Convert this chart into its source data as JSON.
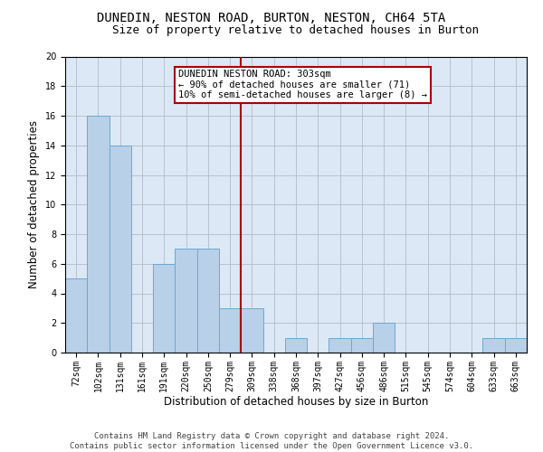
{
  "title": "DUNEDIN, NESTON ROAD, BURTON, NESTON, CH64 5TA",
  "subtitle": "Size of property relative to detached houses in Burton",
  "xlabel": "Distribution of detached houses by size in Burton",
  "ylabel": "Number of detached properties",
  "footer_line1": "Contains HM Land Registry data © Crown copyright and database right 2024.",
  "footer_line2": "Contains public sector information licensed under the Open Government Licence v3.0.",
  "categories": [
    "72sqm",
    "102sqm",
    "131sqm",
    "161sqm",
    "191sqm",
    "220sqm",
    "250sqm",
    "279sqm",
    "309sqm",
    "338sqm",
    "368sqm",
    "397sqm",
    "427sqm",
    "456sqm",
    "486sqm",
    "515sqm",
    "545sqm",
    "574sqm",
    "604sqm",
    "633sqm",
    "663sqm"
  ],
  "values": [
    5,
    16,
    14,
    0,
    6,
    7,
    7,
    3,
    3,
    0,
    1,
    0,
    1,
    1,
    2,
    0,
    0,
    0,
    0,
    1,
    1
  ],
  "bar_color": "#b8d0e8",
  "bar_edge_color": "#6aaad4",
  "vline_x_index": 8,
  "vline_color": "#aa0000",
  "annotation_text": "DUNEDIN NESTON ROAD: 303sqm\n← 90% of detached houses are smaller (71)\n10% of semi-detached houses are larger (8) →",
  "ylim": [
    0,
    20
  ],
  "yticks": [
    0,
    2,
    4,
    6,
    8,
    10,
    12,
    14,
    16,
    18,
    20
  ],
  "bg_color": "#ffffff",
  "plot_bg_color": "#dce8f5",
  "grid_color": "#b0bec8",
  "title_fontsize": 10,
  "subtitle_fontsize": 9,
  "axis_label_fontsize": 8.5,
  "tick_fontsize": 7,
  "footer_fontsize": 6.5,
  "annot_fontsize": 7.5
}
